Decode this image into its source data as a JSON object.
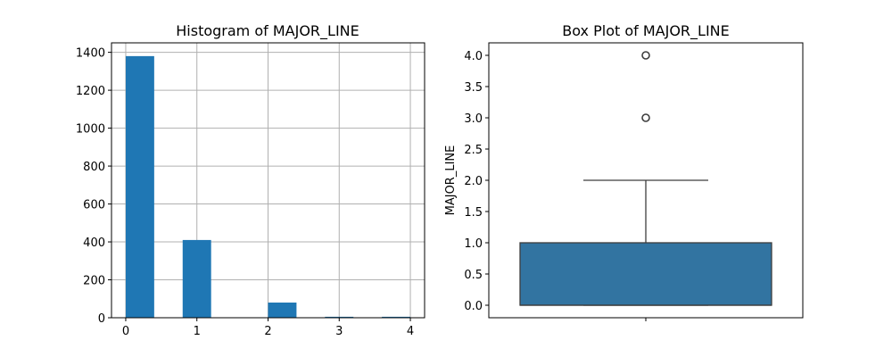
{
  "chart_data": [
    {
      "type": "bar",
      "title": "Histogram of MAJOR_LINE",
      "xlabel": "",
      "ylabel": "",
      "bins": [
        {
          "x0": 0.0,
          "x1": 0.4,
          "count": 1380
        },
        {
          "x0": 0.4,
          "x1": 0.8,
          "count": 0
        },
        {
          "x0": 0.8,
          "x1": 1.2,
          "count": 410
        },
        {
          "x0": 1.2,
          "x1": 1.6,
          "count": 0
        },
        {
          "x0": 1.6,
          "x1": 2.0,
          "count": 0
        },
        {
          "x0": 2.0,
          "x1": 2.4,
          "count": 80
        },
        {
          "x0": 2.4,
          "x1": 2.8,
          "count": 0
        },
        {
          "x0": 2.8,
          "x1": 3.2,
          "count": 5
        },
        {
          "x0": 3.2,
          "x1": 3.6,
          "count": 0
        },
        {
          "x0": 3.6,
          "x1": 4.0,
          "count": 5
        }
      ],
      "xlim": [
        -0.2,
        4.2
      ],
      "ylim": [
        0,
        1450
      ],
      "xticks": [
        0,
        1,
        2,
        3,
        4
      ],
      "yticks": [
        0,
        200,
        400,
        600,
        800,
        1000,
        1200,
        1400
      ],
      "grid": true,
      "color": "#1f77b4"
    },
    {
      "type": "box",
      "title": "Box Plot of MAJOR_LINE",
      "xlabel": "",
      "ylabel": "MAJOR_LINE",
      "box": {
        "min": 0.0,
        "q1": 0.0,
        "median": 0.0,
        "q3": 1.0,
        "whisker_low": 0.0,
        "whisker_high": 2.0
      },
      "outliers": [
        3.0,
        4.0
      ],
      "ylim": [
        -0.2,
        4.2
      ],
      "yticks": [
        0.0,
        0.5,
        1.0,
        1.5,
        2.0,
        2.5,
        3.0,
        3.5,
        4.0
      ],
      "grid": false,
      "color": "#3274a1"
    }
  ]
}
